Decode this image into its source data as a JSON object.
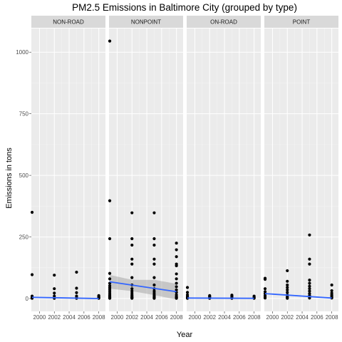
{
  "chart_data": {
    "type": "scatter",
    "title": "PM2.5 Emissions in Baltimore City (grouped by type)",
    "xlabel": "Year",
    "ylabel": "Emissions in tons",
    "xlim": [
      1998.9,
      2008.9
    ],
    "ylim": [
      -52,
      1096
    ],
    "x_ticks": [
      2000,
      2002,
      2004,
      2006,
      2008
    ],
    "y_ticks": [
      0,
      250,
      500,
      750,
      1000
    ],
    "grid": true,
    "facets": [
      {
        "name": "NON-ROAD",
        "points": [
          [
            1999,
            350
          ],
          [
            1999,
            97
          ],
          [
            1999,
            10
          ],
          [
            1999,
            5
          ],
          [
            1999,
            3
          ],
          [
            1999,
            1
          ],
          [
            2002,
            95
          ],
          [
            2002,
            40
          ],
          [
            2002,
            22
          ],
          [
            2002,
            10
          ],
          [
            2002,
            4
          ],
          [
            2002,
            1
          ],
          [
            2005,
            107
          ],
          [
            2005,
            42
          ],
          [
            2005,
            24
          ],
          [
            2005,
            10
          ],
          [
            2005,
            4
          ],
          [
            2005,
            1
          ],
          [
            2008,
            12
          ],
          [
            2008,
            8
          ],
          [
            2008,
            5
          ],
          [
            2008,
            3
          ],
          [
            2008,
            1
          ]
        ],
        "trend": [
          [
            1999,
            5
          ],
          [
            2008,
            0
          ]
        ]
      },
      {
        "name": "NONPOINT",
        "points": [
          [
            1999,
            1045
          ],
          [
            1999,
            397
          ],
          [
            1999,
            243
          ],
          [
            1999,
            102
          ],
          [
            1999,
            80
          ],
          [
            1999,
            62
          ],
          [
            1999,
            52
          ],
          [
            1999,
            45
          ],
          [
            1999,
            38
          ],
          [
            1999,
            30
          ],
          [
            1999,
            22
          ],
          [
            1999,
            15
          ],
          [
            1999,
            10
          ],
          [
            1999,
            6
          ],
          [
            1999,
            3
          ],
          [
            1999,
            1
          ],
          [
            2002,
            348
          ],
          [
            2002,
            243
          ],
          [
            2002,
            217
          ],
          [
            2002,
            160
          ],
          [
            2002,
            140
          ],
          [
            2002,
            85
          ],
          [
            2002,
            55
          ],
          [
            2002,
            40
          ],
          [
            2002,
            30
          ],
          [
            2002,
            22
          ],
          [
            2002,
            15
          ],
          [
            2002,
            10
          ],
          [
            2002,
            6
          ],
          [
            2002,
            3
          ],
          [
            2002,
            1
          ],
          [
            2005,
            348
          ],
          [
            2005,
            243
          ],
          [
            2005,
            217
          ],
          [
            2005,
            160
          ],
          [
            2005,
            140
          ],
          [
            2005,
            85
          ],
          [
            2005,
            55
          ],
          [
            2005,
            40
          ],
          [
            2005,
            30
          ],
          [
            2005,
            22
          ],
          [
            2005,
            15
          ],
          [
            2005,
            10
          ],
          [
            2005,
            6
          ],
          [
            2005,
            3
          ],
          [
            2005,
            1
          ],
          [
            2008,
            225
          ],
          [
            2008,
            198
          ],
          [
            2008,
            170
          ],
          [
            2008,
            140
          ],
          [
            2008,
            133
          ],
          [
            2008,
            100
          ],
          [
            2008,
            80
          ],
          [
            2008,
            62
          ],
          [
            2008,
            48
          ],
          [
            2008,
            35
          ],
          [
            2008,
            25
          ],
          [
            2008,
            15
          ],
          [
            2008,
            8
          ],
          [
            2008,
            4
          ],
          [
            2008,
            1
          ]
        ],
        "trend": [
          [
            1999,
            68
          ],
          [
            2008,
            28
          ]
        ],
        "trend_band": [
          [
            1999,
            40,
            96
          ],
          [
            2002,
            30,
            76
          ],
          [
            2005,
            14,
            76
          ],
          [
            2008,
            -4,
            60
          ]
        ]
      },
      {
        "name": "ON-ROAD",
        "points": [
          [
            1999,
            45
          ],
          [
            1999,
            25
          ],
          [
            1999,
            15
          ],
          [
            1999,
            8
          ],
          [
            1999,
            4
          ],
          [
            1999,
            1
          ],
          [
            2002,
            12
          ],
          [
            2002,
            8
          ],
          [
            2002,
            5
          ],
          [
            2002,
            2
          ],
          [
            2002,
            1
          ],
          [
            2005,
            14
          ],
          [
            2005,
            9
          ],
          [
            2005,
            5
          ],
          [
            2005,
            2
          ],
          [
            2005,
            1
          ],
          [
            2008,
            10
          ],
          [
            2008,
            6
          ],
          [
            2008,
            3
          ],
          [
            2008,
            1
          ]
        ],
        "trend": [
          [
            1999,
            2
          ],
          [
            2008,
            1
          ]
        ]
      },
      {
        "name": "POINT",
        "points": [
          [
            1999,
            82
          ],
          [
            1999,
            78
          ],
          [
            1999,
            40
          ],
          [
            1999,
            28
          ],
          [
            1999,
            20
          ],
          [
            1999,
            12
          ],
          [
            1999,
            6
          ],
          [
            1999,
            2
          ],
          [
            2002,
            113
          ],
          [
            2002,
            70
          ],
          [
            2002,
            55
          ],
          [
            2002,
            45
          ],
          [
            2002,
            35
          ],
          [
            2002,
            25
          ],
          [
            2002,
            15
          ],
          [
            2002,
            8
          ],
          [
            2002,
            3
          ],
          [
            2002,
            1
          ],
          [
            2005,
            258
          ],
          [
            2005,
            160
          ],
          [
            2005,
            140
          ],
          [
            2005,
            75
          ],
          [
            2005,
            62
          ],
          [
            2005,
            50
          ],
          [
            2005,
            40
          ],
          [
            2005,
            30
          ],
          [
            2005,
            20
          ],
          [
            2005,
            12
          ],
          [
            2005,
            6
          ],
          [
            2005,
            2
          ],
          [
            2008,
            55
          ],
          [
            2008,
            32
          ],
          [
            2008,
            22
          ],
          [
            2008,
            15
          ],
          [
            2008,
            10
          ],
          [
            2008,
            5
          ],
          [
            2008,
            2
          ]
        ],
        "trend": [
          [
            1999,
            20
          ],
          [
            2008,
            2
          ]
        ]
      }
    ],
    "colors": {
      "panel_bg": "#ebebeb",
      "grid_major": "#ffffff",
      "grid_minor": "#f5f5f5",
      "strip_bg": "#d9d9d9",
      "point": "#000000",
      "trend": "#3366ff",
      "band": "#999999"
    }
  }
}
